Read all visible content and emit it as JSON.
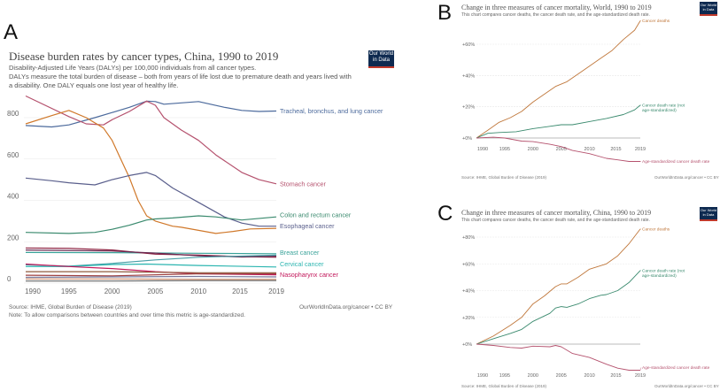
{
  "panels": {
    "a": {
      "letter": "A",
      "title": "Disease burden rates by cancer types, China, 1990 to 2019",
      "subtitle1": "Disability-Adjusted Life Years (DALYs) per 100,000 individuals from all cancer types.",
      "subtitle2": "DALYs measure the total burden of disease – both from years of life lost due to premature death and years lived with",
      "subtitle3": "a disability. One DALY equals one lost year of healthy life.",
      "logo": "Our World in Data",
      "source": "Source: IHME, Global Burden of Disease (2019)",
      "note": "Note: To allow comparisons between countries and over time this metric is age-standardized.",
      "credit": "OurWorldInData.org/cancer • CC BY"
    },
    "b": {
      "letter": "B",
      "title": "Change in three measures of cancer mortality, World, 1990 to 2019",
      "subtitle": "This chart compares cancer deaths, the cancer death rate, and the age-standardized death rate.",
      "logo": "Our World in Data",
      "source": "Source: IHME, Global Burden of Disease (2019)",
      "credit": "OurWorldInData.org/cancer • CC BY"
    },
    "c": {
      "letter": "C",
      "title": "Change in three measures of cancer mortality, China, 1990 to 2019",
      "subtitle": "This chart compares cancer deaths, the cancer death rate, and the age-standardized death rate.",
      "logo": "Our World in Data",
      "source": "Source: IHME, Global Burden of Disease (2019)",
      "credit": "OurWorldInData.org/cancer • CC BY"
    }
  },
  "chart_data": [
    {
      "type": "line",
      "title": "Disease burden rates by cancer types, China, 1990 to 2019",
      "ylabel": "",
      "xlim": [
        1990,
        2019
      ],
      "ylim": [
        0,
        900
      ],
      "yticks": [
        "0",
        "200",
        "400",
        "600",
        "800"
      ],
      "xticks": [
        "1990",
        "1995",
        "2000",
        "2005",
        "2010",
        "2015",
        "2019"
      ],
      "grid": true,
      "series": [
        {
          "name": "Tracheal, bronchus, and lung cancer",
          "color": "#4c6a9c",
          "x": [
            1990,
            1993,
            1995,
            1998,
            2000,
            2002,
            2004,
            2005,
            2006,
            2010,
            2013,
            2015,
            2017,
            2019
          ],
          "y": [
            762,
            755,
            765,
            800,
            825,
            850,
            880,
            878,
            865,
            878,
            850,
            835,
            830,
            832
          ]
        },
        {
          "name": "Stomach cancer",
          "color": "#b5526e",
          "x": [
            1990,
            1995,
            1997,
            1999,
            2000,
            2002,
            2004,
            2005,
            2006,
            2008,
            2010,
            2012,
            2015,
            2017,
            2019
          ],
          "y": [
            905,
            805,
            770,
            765,
            790,
            830,
            880,
            860,
            800,
            740,
            690,
            620,
            535,
            500,
            480
          ]
        },
        {
          "name": "",
          "color": "#d0782a",
          "x": [
            1990,
            1993,
            1995,
            1997,
            1999,
            2000,
            2001,
            2002,
            2003,
            2004,
            2005,
            2007,
            2008,
            2010,
            2012,
            2014,
            2016,
            2019
          ],
          "y": [
            770,
            810,
            835,
            800,
            750,
            690,
            600,
            510,
            400,
            325,
            300,
            275,
            270,
            255,
            240,
            250,
            262,
            265
          ]
        },
        {
          "name": "Esophageal cancer",
          "color": "#5a5f8c",
          "x": [
            1990,
            1993,
            1995,
            1998,
            2000,
            2002,
            2004,
            2005,
            2007,
            2010,
            2013,
            2015,
            2017,
            2019
          ],
          "y": [
            508,
            495,
            485,
            475,
            500,
            520,
            535,
            520,
            460,
            390,
            320,
            290,
            275,
            275
          ]
        },
        {
          "name": "Colon and rectum cancer",
          "color": "#3a8a6e",
          "x": [
            1990,
            1995,
            1998,
            2000,
            2002,
            2004,
            2005,
            2007,
            2010,
            2012,
            2015,
            2019
          ],
          "y": [
            245,
            240,
            245,
            260,
            280,
            305,
            310,
            315,
            325,
            320,
            305,
            320
          ]
        },
        {
          "name": "Breast cancer",
          "color": "#3aa39a",
          "x": [
            1990,
            2000,
            2010,
            2019
          ],
          "y": [
            148,
            147,
            144,
            142
          ]
        },
        {
          "name": "",
          "color": "#8a1c3c",
          "x": [
            1990,
            1995,
            2000,
            2005,
            2010,
            2015,
            2019
          ],
          "y": [
            170,
            168,
            160,
            140,
            135,
            128,
            125
          ]
        },
        {
          "name": "",
          "color": "#6b2850",
          "x": [
            1990,
            1995,
            2000,
            2005,
            2010,
            2015,
            2019
          ],
          "y": [
            160,
            158,
            155,
            145,
            132,
            126,
            130
          ]
        },
        {
          "name": "",
          "color": "#4aa0a8",
          "x": [
            1990,
            1995,
            2000,
            2005,
            2010,
            2019
          ],
          "y": [
            88,
            82,
            95,
            112,
            125,
            135
          ]
        },
        {
          "name": "Cervical cancer",
          "color": "#2bb5b0",
          "x": [
            1990,
            1995,
            2000,
            2004,
            2010,
            2019
          ],
          "y": [
            80,
            80,
            90,
            92,
            85,
            78
          ]
        },
        {
          "name": "Nasopharynx cancer",
          "color": "#c2185b",
          "x": [
            1990,
            1995,
            2000,
            2005,
            2010,
            2019
          ],
          "y": [
            92,
            80,
            70,
            55,
            45,
            40
          ]
        },
        {
          "name": "",
          "color": "#8f5a3c",
          "x": [
            1990,
            2000,
            2010,
            2019
          ],
          "y": [
            55,
            55,
            50,
            50
          ]
        },
        {
          "name": "",
          "color": "#a04040",
          "x": [
            1990,
            2000,
            2010,
            2019
          ],
          "y": [
            38,
            35,
            45,
            45
          ]
        },
        {
          "name": "",
          "color": "#777799",
          "x": [
            1990,
            2000,
            2010,
            2019
          ],
          "y": [
            28,
            30,
            32,
            30
          ]
        },
        {
          "name": "",
          "color": "#c98a6a",
          "x": [
            1990,
            2000,
            2010,
            2019
          ],
          "y": [
            20,
            20,
            18,
            18
          ]
        },
        {
          "name": "",
          "color": "#666666",
          "x": [
            1990,
            2000,
            2010,
            2019
          ],
          "y": [
            10,
            10,
            12,
            12
          ]
        }
      ]
    },
    {
      "type": "line",
      "title": "Change in three measures of cancer mortality, World, 1990 to 2019",
      "xlim": [
        1990,
        2019
      ],
      "ylim": [
        -16,
        76
      ],
      "yticks": [
        "+0%",
        "+20%",
        "+40%",
        "+60%"
      ],
      "xticks": [
        "1990",
        "1995",
        "2000",
        "2005",
        "2010",
        "2015",
        "2019"
      ],
      "grid": true,
      "series": [
        {
          "name": "Cancer deaths",
          "color": "#c0783c",
          "x": [
            1990,
            1992,
            1994,
            1996,
            1998,
            2000,
            2002,
            2004,
            2006,
            2008,
            2010,
            2012,
            2014,
            2016,
            2018,
            2019
          ],
          "y": [
            0,
            5,
            10,
            13,
            17,
            23,
            28,
            33,
            36,
            41,
            46,
            51,
            56,
            63,
            69,
            75
          ]
        },
        {
          "name": "Cancer death rate (not age-standardized)",
          "color": "#3a8a6e",
          "x": [
            1990,
            1992,
            1994,
            1997,
            2000,
            2003,
            2005,
            2007,
            2010,
            2013,
            2016,
            2018,
            2019
          ],
          "y": [
            0,
            3,
            3.5,
            4,
            6,
            7.5,
            8.5,
            8.5,
            10.5,
            12.5,
            15,
            18,
            21
          ]
        },
        {
          "name": "Age-standardized cancer death rate",
          "color": "#b5526e",
          "x": [
            1990,
            1993,
            1995,
            1998,
            2000,
            2003,
            2005,
            2007,
            2010,
            2013,
            2015,
            2017,
            2019
          ],
          "y": [
            0,
            0.5,
            0,
            -2,
            -2.3,
            -4,
            -5.5,
            -8,
            -10,
            -13,
            -14,
            -15,
            -15
          ]
        }
      ]
    },
    {
      "type": "line",
      "title": "Change in three measures of cancer mortality, China, 1990 to 2019",
      "xlim": [
        1990,
        2019
      ],
      "ylim": [
        -20,
        86
      ],
      "yticks": [
        "+0%",
        "+20%",
        "+40%",
        "+60%",
        "+80%"
      ],
      "xticks": [
        "1990",
        "1995",
        "2000",
        "2005",
        "2010",
        "2015",
        "2019"
      ],
      "grid": true,
      "series": [
        {
          "name": "Cancer deaths",
          "color": "#c0783c",
          "x": [
            1990,
            1993,
            1996,
            1998,
            2000,
            2002,
            2004,
            2005,
            2006,
            2008,
            2010,
            2013,
            2015,
            2017,
            2019
          ],
          "y": [
            0,
            6,
            14,
            20,
            30,
            36,
            43,
            45,
            45,
            50,
            56,
            60,
            66,
            75,
            86
          ]
        },
        {
          "name": "Cancer death rate (not age-standardized)",
          "color": "#3a8a6e",
          "x": [
            1990,
            1993,
            1996,
            1998,
            2000,
            2003,
            2004,
            2005,
            2006,
            2008,
            2010,
            2012,
            2013,
            2015,
            2017,
            2019
          ],
          "y": [
            0,
            4,
            8,
            11,
            17,
            23,
            27,
            28,
            27.5,
            30,
            34,
            36.5,
            37,
            40,
            46,
            55
          ]
        },
        {
          "name": "Age-standardized cancer death rate",
          "color": "#b5526e",
          "x": [
            1990,
            1993,
            1996,
            1998,
            2000,
            2003,
            2004,
            2005,
            2007,
            2010,
            2013,
            2015,
            2017,
            2019
          ],
          "y": [
            0,
            -1,
            -2.5,
            -3,
            -1.5,
            -2,
            -1,
            -2,
            -7,
            -10,
            -15,
            -18,
            -19.5,
            -19.5
          ]
        }
      ]
    }
  ]
}
